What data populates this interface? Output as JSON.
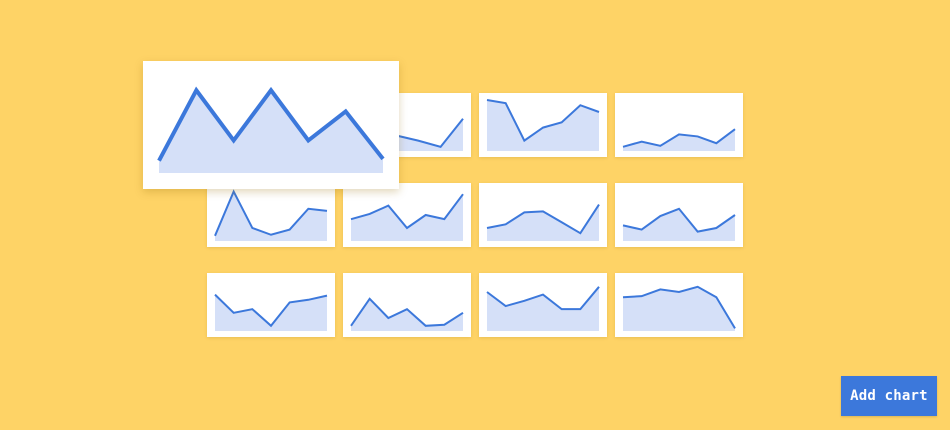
{
  "colors": {
    "background": "#FED366",
    "card": "#FFFFFF",
    "line": "#3C78DB",
    "fill": "#D5E0F8",
    "button": "#3C78DB",
    "button_text": "#FFFFFF"
  },
  "featured_chart": {
    "type": "area",
    "y_range": [
      0,
      100
    ],
    "values": [
      14,
      94,
      37,
      94,
      37,
      70,
      16
    ]
  },
  "thumbnails": [
    {
      "type": "area",
      "y_range": [
        0,
        100
      ],
      "values": [
        60,
        50,
        30,
        20,
        8,
        62
      ]
    },
    {
      "type": "area",
      "y_range": [
        0,
        100
      ],
      "values": [
        98,
        92,
        20,
        45,
        55,
        88,
        75
      ]
    },
    {
      "type": "area",
      "y_range": [
        0,
        100
      ],
      "values": [
        8,
        18,
        10,
        32,
        28,
        15,
        42
      ]
    },
    {
      "type": "area",
      "y_range": [
        0,
        100
      ],
      "values": [
        10,
        95,
        25,
        12,
        22,
        62,
        58
      ]
    },
    {
      "type": "area",
      "y_range": [
        0,
        100
      ],
      "values": [
        42,
        52,
        68,
        25,
        50,
        42,
        90
      ]
    },
    {
      "type": "area",
      "y_range": [
        0,
        100
      ],
      "values": [
        25,
        32,
        55,
        57,
        36,
        15,
        70
      ]
    },
    {
      "type": "area",
      "y_range": [
        0,
        100
      ],
      "values": [
        30,
        22,
        48,
        62,
        18,
        25,
        50
      ]
    },
    {
      "type": "area",
      "y_range": [
        0,
        100
      ],
      "values": [
        70,
        35,
        42,
        10,
        55,
        60,
        68
      ]
    },
    {
      "type": "area",
      "y_range": [
        0,
        100
      ],
      "values": [
        10,
        62,
        25,
        42,
        10,
        12,
        35
      ]
    },
    {
      "type": "area",
      "y_range": [
        0,
        100
      ],
      "values": [
        75,
        48,
        58,
        70,
        42,
        42,
        85
      ]
    },
    {
      "type": "area",
      "y_range": [
        0,
        100
      ],
      "values": [
        65,
        67,
        80,
        75,
        85,
        65,
        5
      ]
    }
  ],
  "add_chart_label": "Add chart"
}
